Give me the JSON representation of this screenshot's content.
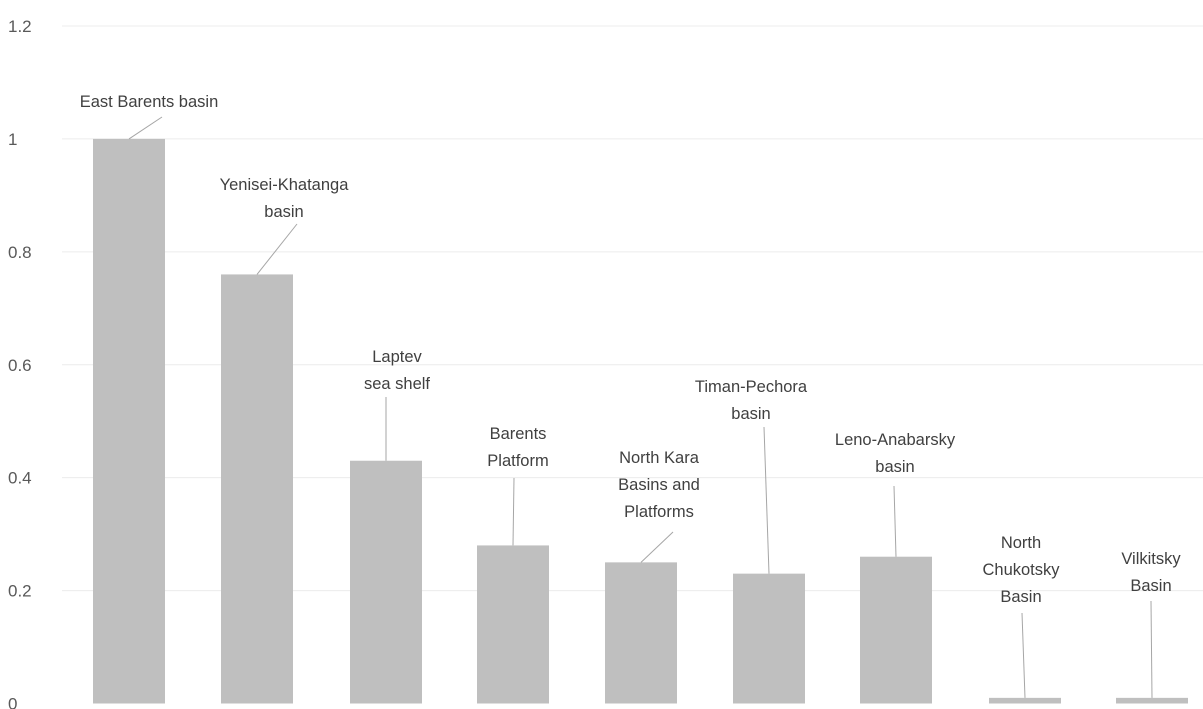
{
  "chart_data": {
    "type": "bar",
    "categories": [
      [
        "East Barents basin"
      ],
      [
        "Yenisei-Khatanga",
        "basin"
      ],
      [
        "Laptev",
        "sea shelf"
      ],
      [
        "Barents",
        "Platform"
      ],
      [
        "North Kara",
        "Basins and",
        "Platforms"
      ],
      [
        "Timan-Pechora",
        "basin"
      ],
      [
        "Leno-Anabarsky",
        "basin"
      ],
      [
        "North",
        "Chukotsky",
        "Basin"
      ],
      [
        "Vilkitsky",
        "Basin"
      ]
    ],
    "values": [
      1.0,
      0.76,
      0.43,
      0.28,
      0.25,
      0.23,
      0.26,
      0.01,
      0.01
    ],
    "title": "",
    "xlabel": "",
    "ylabel": "",
    "ylim": [
      0,
      1.2
    ],
    "yticks": [
      0,
      0.2,
      0.4,
      0.6,
      0.8,
      1,
      1.2
    ],
    "ytick_labels": [
      "0",
      "0.2",
      "0.4",
      "0.6",
      "0.8",
      "1",
      "1.2"
    ],
    "grid": "horizontal",
    "legend": "none",
    "bar_color": "#bfbfbf",
    "data_labels": "category names with leader lines"
  }
}
